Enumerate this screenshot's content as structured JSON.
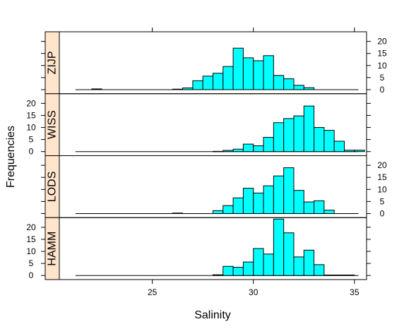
{
  "chart_data": {
    "type": "bar",
    "xlabel": "Salinity",
    "ylabel": "Frequencies",
    "xlim": [
      20.4,
      35.6
    ],
    "ylim": [
      -1.7,
      24
    ],
    "x_ticks": [
      25,
      30,
      35
    ],
    "y_ticks": [
      0,
      5,
      10,
      15,
      20
    ],
    "bin_width": 0.5,
    "bar_color": "#00ffff",
    "strip_color": "#ffe5cc",
    "panels": [
      {
        "name": "ZIJP",
        "bins": [
          [
            22,
            0.3
          ],
          [
            26,
            0.2
          ],
          [
            26.5,
            0.7
          ],
          [
            27,
            3.7
          ],
          [
            27.5,
            5.6
          ],
          [
            28,
            6.8
          ],
          [
            28.5,
            9.6
          ],
          [
            29,
            17.2
          ],
          [
            29.5,
            13.2
          ],
          [
            30,
            12
          ],
          [
            30.5,
            14.1
          ],
          [
            31,
            5.9
          ],
          [
            31.5,
            4.5
          ],
          [
            32,
            1.8
          ],
          [
            32.5,
            0.8
          ]
        ]
      },
      {
        "name": "WISS",
        "bins": [
          [
            28,
            0.1
          ],
          [
            28.5,
            0.5
          ],
          [
            29,
            1
          ],
          [
            29.5,
            3.1
          ],
          [
            30,
            2.4
          ],
          [
            30.5,
            5.9
          ],
          [
            31,
            12
          ],
          [
            31.5,
            13.7
          ],
          [
            32,
            14.8
          ],
          [
            32.5,
            18.9
          ],
          [
            33,
            10
          ],
          [
            33.5,
            8.8
          ],
          [
            34,
            4.3
          ],
          [
            34.5,
            0.6
          ],
          [
            35,
            0.6
          ]
        ]
      },
      {
        "name": "LODS",
        "bins": [
          [
            26,
            0.2
          ],
          [
            28,
            1.2
          ],
          [
            28.5,
            3.3
          ],
          [
            29,
            6.5
          ],
          [
            29.5,
            10.5
          ],
          [
            30,
            8.5
          ],
          [
            30.5,
            11.5
          ],
          [
            31,
            15.6
          ],
          [
            31.5,
            19
          ],
          [
            32,
            9.6
          ],
          [
            32.5,
            4.8
          ],
          [
            33,
            5.3
          ],
          [
            33.5,
            1.4
          ]
        ]
      },
      {
        "name": "HAMM",
        "bins": [
          [
            28,
            0.3
          ],
          [
            28.5,
            3.8
          ],
          [
            29,
            3.4
          ],
          [
            29.5,
            5.6
          ],
          [
            30,
            11.2
          ],
          [
            30.5,
            8.9
          ],
          [
            31,
            23.4
          ],
          [
            31.5,
            17.7
          ],
          [
            32,
            7.7
          ],
          [
            32.5,
            10.5
          ],
          [
            33,
            4.5
          ],
          [
            33.5,
            0.2
          ],
          [
            34,
            0.2
          ],
          [
            34.5,
            0.2
          ]
        ]
      }
    ]
  }
}
